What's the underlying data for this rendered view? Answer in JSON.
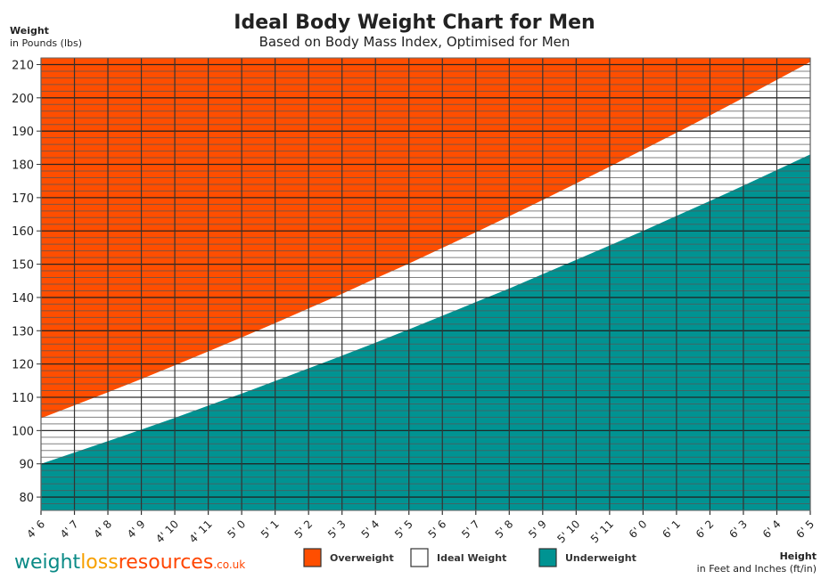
{
  "chart_data": {
    "type": "area",
    "title": "Ideal Body Weight Chart for Men",
    "subtitle": "Based on Body Mass Index, Optimised for Men",
    "ylabel": "Weight",
    "ylabel_sub": "in Pounds (lbs)",
    "xlabel": "Height",
    "xlabel_sub": "in Feet and Inches (ft/in)",
    "ylim": [
      76,
      212
    ],
    "yticks": [
      80,
      90,
      100,
      110,
      120,
      130,
      140,
      150,
      160,
      170,
      180,
      190,
      200,
      210
    ],
    "minor_grid_step": 2,
    "grid": true,
    "categories": [
      "4' 6",
      "4' 7",
      "4' 8",
      "4' 9",
      "4' 10",
      "4' 11",
      "5' 0",
      "5' 1",
      "5' 2",
      "5' 3",
      "5' 4",
      "5' 5",
      "5' 6",
      "5' 7",
      "5' 8",
      "5' 9",
      "5' 10",
      "5' 11",
      "6' 0",
      "6' 1",
      "6' 2",
      "6' 3",
      "6' 4",
      "6' 5"
    ],
    "series": [
      {
        "name": "Overweight",
        "color": "#ff4e00",
        "region": "above upper",
        "values": [
          103.7,
          107.6,
          111.5,
          115.5,
          119.6,
          123.8,
          128.0,
          132.3,
          136.7,
          141.1,
          145.7,
          150.2,
          154.9,
          159.6,
          164.4,
          169.3,
          174.3,
          179.3,
          184.4,
          189.5,
          194.7,
          200.0,
          205.4,
          210.8
        ]
      },
      {
        "name": "Ideal Weight",
        "color": "#ffffff",
        "region": "between"
      },
      {
        "name": "Underweight",
        "color": "#009392",
        "region": "below lower",
        "values": [
          90.0,
          93.4,
          96.8,
          100.3,
          103.8,
          107.5,
          111.1,
          114.9,
          118.7,
          122.5,
          126.4,
          130.4,
          134.5,
          138.6,
          142.7,
          147.0,
          151.3,
          155.6,
          160.0,
          164.5,
          169.0,
          173.6,
          178.3,
          183.0
        ]
      }
    ],
    "legend": "bottom"
  },
  "logo": {
    "part1": "weight",
    "part2": "loss",
    "part3": "resources",
    "part4": ".co.uk"
  }
}
